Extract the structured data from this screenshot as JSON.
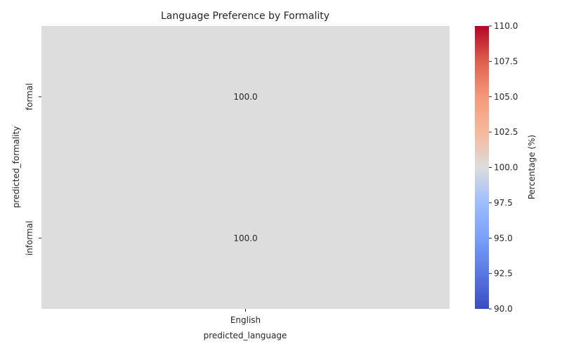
{
  "chart_data": {
    "type": "heatmap",
    "title": "Language Preference by Formality",
    "xlabel": "predicted_language",
    "ylabel": "predicted_formality",
    "x_categories": [
      "English"
    ],
    "y_categories": [
      "formal",
      "informal"
    ],
    "values": [
      [
        100.0
      ],
      [
        100.0
      ]
    ],
    "cell_labels": [
      "100.0",
      "100.0"
    ],
    "cell_color": "#dddddd",
    "colorbar": {
      "label": "Percentage (%)",
      "range": [
        90.0,
        110.0
      ],
      "colormap": "coolwarm",
      "ticks": [
        90.0,
        92.5,
        95.0,
        97.5,
        100.0,
        102.5,
        105.0,
        107.5,
        110.0
      ],
      "tick_labels": [
        "90.0",
        "92.5",
        "95.0",
        "97.5",
        "100.0",
        "102.5",
        "105.0",
        "107.5",
        "110.0"
      ]
    }
  }
}
